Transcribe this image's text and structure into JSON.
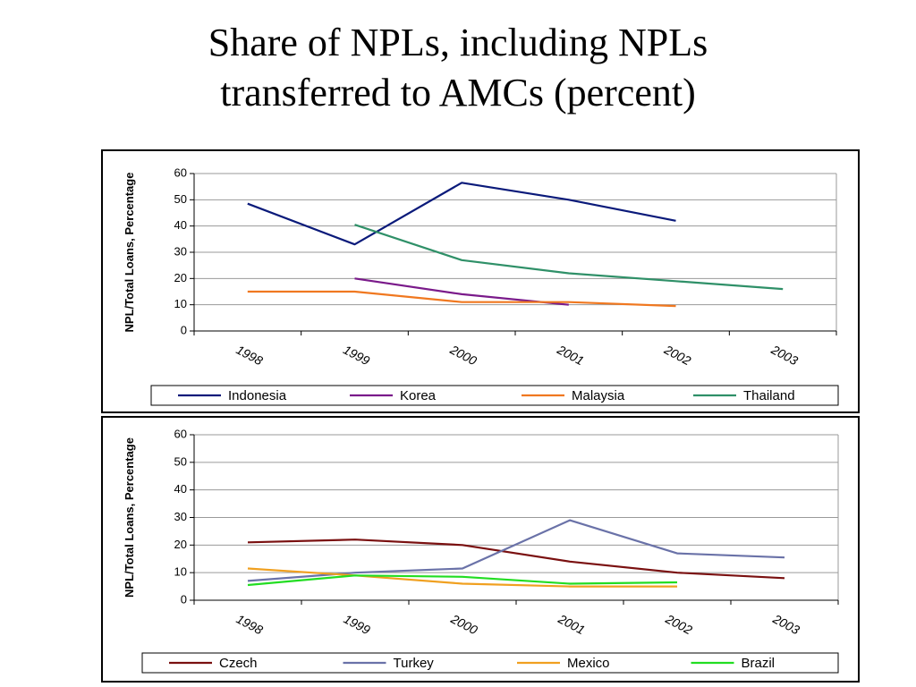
{
  "title": {
    "line1": "Share of NPLs, including NPLs",
    "line2": "transferred to AMCs (percent)"
  },
  "chart_data": [
    {
      "type": "line",
      "title": "",
      "xlabel": "",
      "ylabel": "NPL/Total Loans, Percentage",
      "categories": [
        "1998",
        "1999",
        "2000",
        "2001",
        "2002",
        "2003"
      ],
      "ylim": [
        0,
        60
      ],
      "yticks": [
        0,
        10,
        20,
        30,
        40,
        50,
        60
      ],
      "grid": true,
      "legend": "bottom",
      "series": [
        {
          "name": "Indonesia",
          "color": "#0a1a7a",
          "values": [
            48.5,
            33,
            56.5,
            50,
            42,
            null
          ]
        },
        {
          "name": "Korea",
          "color": "#7a1a8a",
          "values": [
            null,
            20,
            14,
            10,
            null,
            null
          ]
        },
        {
          "name": "Malaysia",
          "color": "#f07820",
          "values": [
            15,
            15,
            11,
            11,
            9.5,
            null
          ]
        },
        {
          "name": "Thailand",
          "color": "#2f9068",
          "values": [
            null,
            40.5,
            27,
            22,
            19,
            16
          ]
        }
      ]
    },
    {
      "type": "line",
      "title": "",
      "xlabel": "",
      "ylabel": "NPL/Total Loans, Percentage",
      "categories": [
        "1998",
        "1999",
        "2000",
        "2001",
        "2002",
        "2003"
      ],
      "ylim": [
        0,
        60
      ],
      "yticks": [
        0,
        10,
        20,
        30,
        40,
        50,
        60
      ],
      "grid": true,
      "legend": "bottom",
      "series": [
        {
          "name": "Czech",
          "color": "#7a1010",
          "values": [
            21,
            22,
            20,
            14,
            10,
            8
          ]
        },
        {
          "name": "Turkey",
          "color": "#6a72a8",
          "values": [
            7,
            10,
            11.5,
            29,
            17,
            15.5
          ]
        },
        {
          "name": "Mexico",
          "color": "#f0a020",
          "values": [
            11.5,
            9,
            6,
            5,
            5,
            null
          ]
        },
        {
          "name": "Brazil",
          "color": "#22dd22",
          "values": [
            5.5,
            9,
            8.5,
            6,
            6.5,
            null
          ]
        }
      ]
    }
  ]
}
